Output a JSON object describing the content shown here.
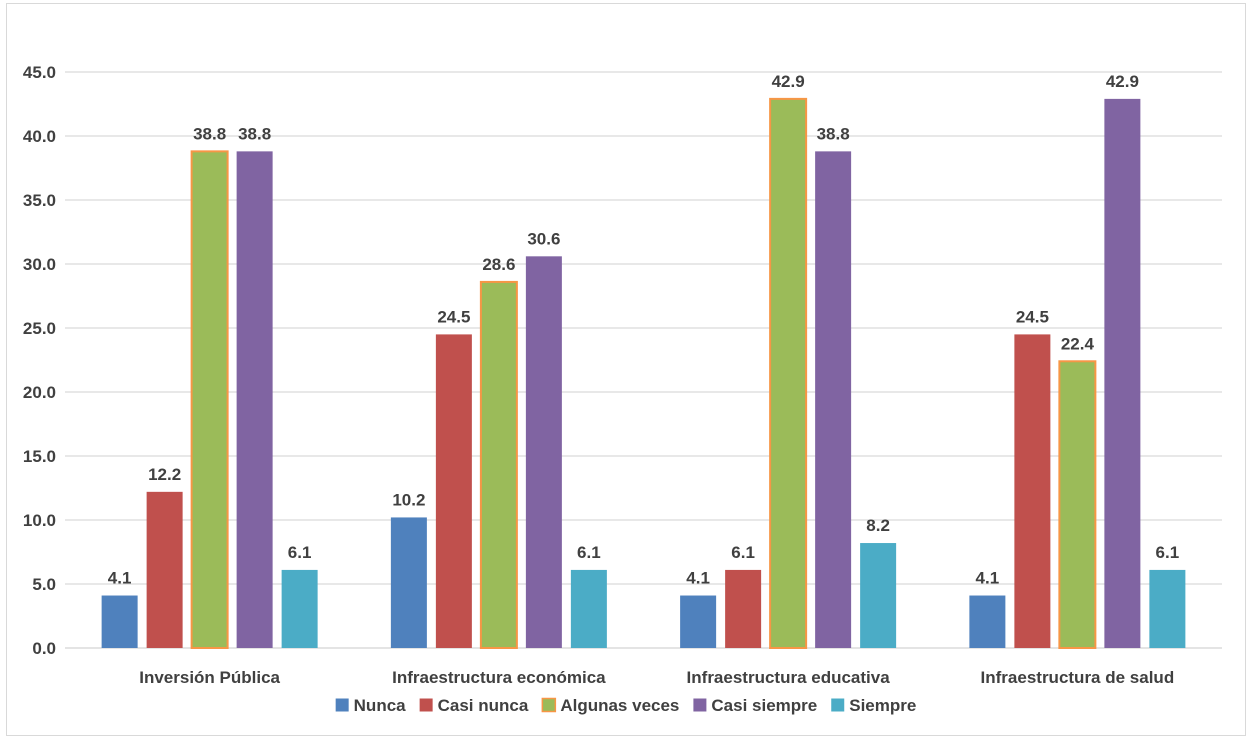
{
  "chart_data": {
    "type": "bar",
    "title": "",
    "xlabel": "",
    "ylabel": "",
    "categories": [
      "Inversión Pública",
      "Infraestructura económica",
      "Infraestructura educativa",
      "Infraestructura de salud"
    ],
    "series": [
      {
        "name": "Nunca",
        "color": "#4f81bd",
        "values": [
          4.1,
          10.2,
          4.1,
          4.1
        ]
      },
      {
        "name": "Casi nunca",
        "color": "#c0504d",
        "values": [
          12.2,
          24.5,
          6.1,
          24.5
        ]
      },
      {
        "name": "Algunas veces",
        "color": "#9bbb59",
        "border": "#f79646",
        "values": [
          38.8,
          28.6,
          42.9,
          22.4
        ]
      },
      {
        "name": "Casi siempre",
        "color": "#8064a2",
        "values": [
          38.8,
          30.6,
          38.8,
          42.9
        ]
      },
      {
        "name": "Siempre",
        "color": "#4bacc6",
        "values": [
          6.1,
          6.1,
          8.2,
          6.1
        ]
      }
    ],
    "ylim": [
      0,
      45
    ],
    "yticks": [
      0,
      5,
      10,
      15,
      20,
      25,
      30,
      35,
      40,
      45
    ],
    "ytick_labels": [
      "0.0",
      "5.0",
      "10.0",
      "15.0",
      "20.0",
      "25.0",
      "30.0",
      "35.0",
      "40.0",
      "45.0"
    ],
    "data_labels": true,
    "grid": true,
    "legend_position": "bottom"
  }
}
